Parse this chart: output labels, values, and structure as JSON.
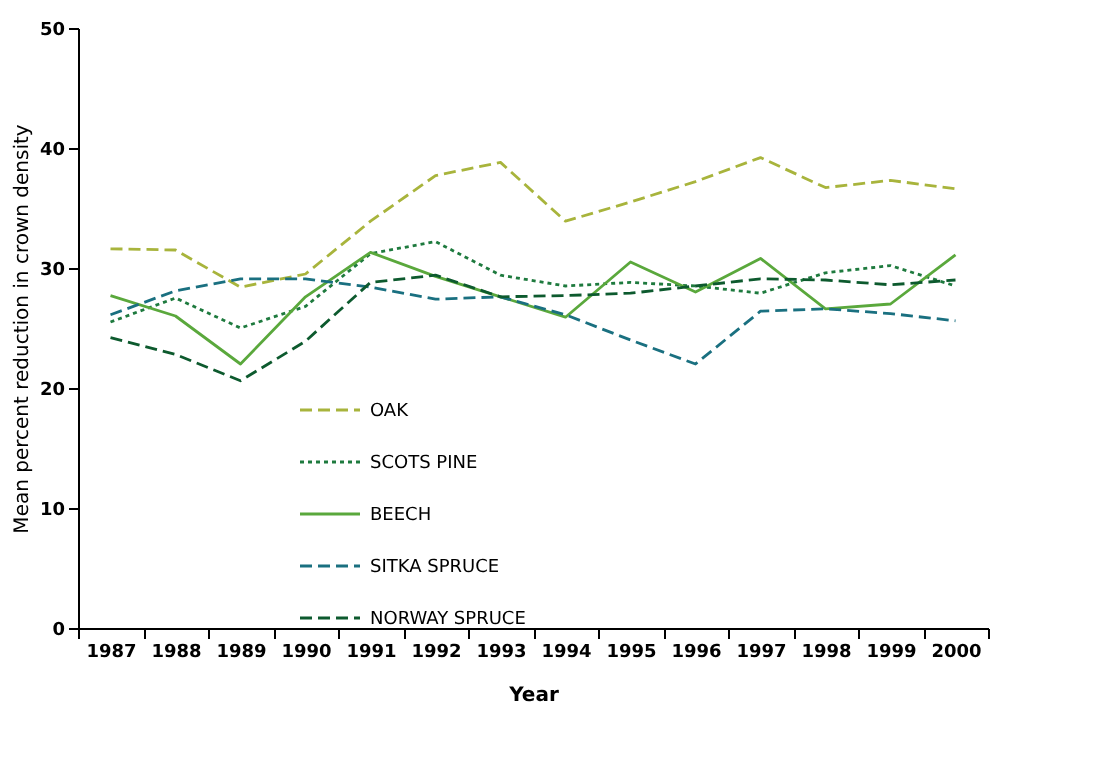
{
  "chart_data": {
    "type": "line",
    "xlabel": "Year",
    "ylabel": "Mean percent reduction in crown density",
    "categories": [
      "1987",
      "1988",
      "1989",
      "1990",
      "1991",
      "1992",
      "1993",
      "1994",
      "1995",
      "1996",
      "1997",
      "1998",
      "1999",
      "2000"
    ],
    "ylim": [
      0,
      50
    ],
    "yticks": [
      0,
      10,
      20,
      30,
      40,
      50
    ],
    "grid": false,
    "legend": "bottom",
    "marker": "none",
    "series": [
      {
        "name": "OAK",
        "color": "#a8b43c",
        "line_style": "dashed",
        "values": [
          31.6,
          31.5,
          28.4,
          29.5,
          33.9,
          37.7,
          38.8,
          33.9,
          35.5,
          37.2,
          39.2,
          36.7,
          37.3,
          36.6
        ]
      },
      {
        "name": "SCOTS PINE",
        "color": "#1e7a3e",
        "line_style": "dotted",
        "values": [
          25.5,
          27.5,
          25.0,
          26.8,
          31.2,
          32.2,
          29.4,
          28.5,
          28.8,
          28.5,
          27.9,
          29.6,
          30.2,
          28.5
        ]
      },
      {
        "name": "BEECH",
        "color": "#5aa83c",
        "line_style": "solid",
        "values": [
          27.7,
          26.0,
          22.0,
          27.6,
          31.3,
          29.3,
          27.6,
          25.9,
          30.5,
          28.0,
          30.8,
          26.6,
          27.0,
          31.1
        ]
      },
      {
        "name": "SITKA SPRUCE",
        "color": "#1a7080",
        "line_style": "dashed",
        "values": [
          26.1,
          28.1,
          29.1,
          29.1,
          28.4,
          27.4,
          27.6,
          26.1,
          24.0,
          22.0,
          26.4,
          26.6,
          26.2,
          25.6
        ]
      },
      {
        "name": "NORWAY SPRUCE",
        "color": "#0d5a2e",
        "line_style": "dashed",
        "values": [
          24.2,
          22.8,
          20.6,
          23.9,
          28.8,
          29.4,
          27.6,
          27.7,
          27.9,
          28.5,
          29.1,
          29.0,
          28.6,
          29.0
        ]
      }
    ]
  }
}
